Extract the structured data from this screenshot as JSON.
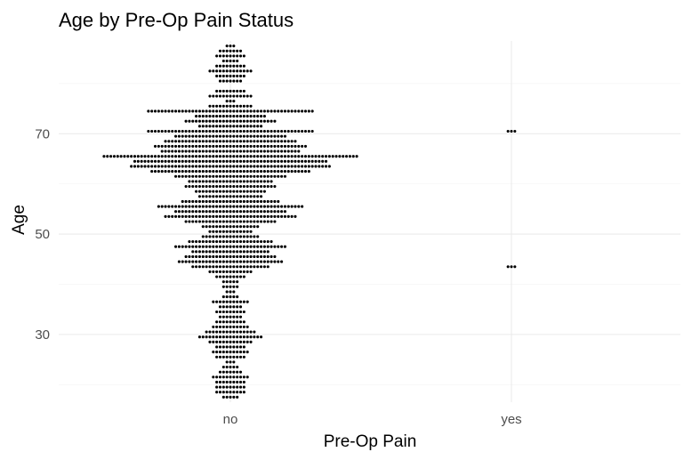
{
  "chart_data": {
    "type": "scatter",
    "subtype": "beeswarm",
    "title": "Age by Pre-Op Pain Status",
    "xlabel": "Pre-Op Pain",
    "ylabel": "Age",
    "categories": [
      "no",
      "yes"
    ],
    "yticks": [
      30,
      50,
      70
    ],
    "ylim": [
      16.5,
      88.5
    ],
    "grid": true,
    "legend": "none",
    "series": [
      {
        "category": "no",
        "bins": [
          {
            "y": 87.5,
            "count": 3
          },
          {
            "y": 86.5,
            "count": 7
          },
          {
            "y": 85.5,
            "count": 9
          },
          {
            "y": 84.5,
            "count": 5
          },
          {
            "y": 83.5,
            "count": 9
          },
          {
            "y": 82.5,
            "count": 13
          },
          {
            "y": 81.5,
            "count": 9
          },
          {
            "y": 80.5,
            "count": 7
          },
          {
            "y": 78.5,
            "count": 9
          },
          {
            "y": 77.5,
            "count": 13
          },
          {
            "y": 76.5,
            "count": 3
          },
          {
            "y": 75.5,
            "count": 13
          },
          {
            "y": 74.5,
            "count": 49
          },
          {
            "y": 73.5,
            "count": 21
          },
          {
            "y": 72.5,
            "count": 27
          },
          {
            "y": 71.5,
            "count": 19
          },
          {
            "y": 70.5,
            "count": 49
          },
          {
            "y": 69.5,
            "count": 33
          },
          {
            "y": 68.5,
            "count": 39
          },
          {
            "y": 67.5,
            "count": 45
          },
          {
            "y": 66.5,
            "count": 41
          },
          {
            "y": 65.5,
            "count": 75
          },
          {
            "y": 64.5,
            "count": 57
          },
          {
            "y": 63.5,
            "count": 59
          },
          {
            "y": 62.5,
            "count": 47
          },
          {
            "y": 61.5,
            "count": 33
          },
          {
            "y": 60.5,
            "count": 25
          },
          {
            "y": 59.5,
            "count": 27
          },
          {
            "y": 58.5,
            "count": 21
          },
          {
            "y": 57.5,
            "count": 19
          },
          {
            "y": 56.5,
            "count": 29
          },
          {
            "y": 55.5,
            "count": 43
          },
          {
            "y": 54.5,
            "count": 33
          },
          {
            "y": 53.5,
            "count": 39
          },
          {
            "y": 52.5,
            "count": 27
          },
          {
            "y": 51.5,
            "count": 17
          },
          {
            "y": 50.5,
            "count": 13
          },
          {
            "y": 49.5,
            "count": 17
          },
          {
            "y": 48.5,
            "count": 25
          },
          {
            "y": 47.5,
            "count": 33
          },
          {
            "y": 46.5,
            "count": 23
          },
          {
            "y": 45.5,
            "count": 27
          },
          {
            "y": 44.5,
            "count": 31
          },
          {
            "y": 43.5,
            "count": 23
          },
          {
            "y": 42.5,
            "count": 13
          },
          {
            "y": 41.5,
            "count": 9
          },
          {
            "y": 40.5,
            "count": 5
          },
          {
            "y": 39.5,
            "count": 5
          },
          {
            "y": 38.5,
            "count": 3
          },
          {
            "y": 37.5,
            "count": 5
          },
          {
            "y": 36.5,
            "count": 11
          },
          {
            "y": 35.5,
            "count": 7
          },
          {
            "y": 34.5,
            "count": 9
          },
          {
            "y": 33.5,
            "count": 7
          },
          {
            "y": 32.5,
            "count": 9
          },
          {
            "y": 31.5,
            "count": 11
          },
          {
            "y": 30.5,
            "count": 15
          },
          {
            "y": 29.5,
            "count": 19
          },
          {
            "y": 28.5,
            "count": 13
          },
          {
            "y": 27.5,
            "count": 9
          },
          {
            "y": 26.5,
            "count": 11
          },
          {
            "y": 25.5,
            "count": 9
          },
          {
            "y": 24.5,
            "count": 3
          },
          {
            "y": 23.5,
            "count": 5
          },
          {
            "y": 22.5,
            "count": 7
          },
          {
            "y": 21.5,
            "count": 11
          },
          {
            "y": 20.5,
            "count": 9
          },
          {
            "y": 19.5,
            "count": 9
          },
          {
            "y": 18.5,
            "count": 9
          },
          {
            "y": 17.5,
            "count": 5
          }
        ]
      },
      {
        "category": "yes",
        "bins": [
          {
            "y": 70.5,
            "count": 3
          },
          {
            "y": 43.5,
            "count": 3
          }
        ]
      }
    ]
  }
}
